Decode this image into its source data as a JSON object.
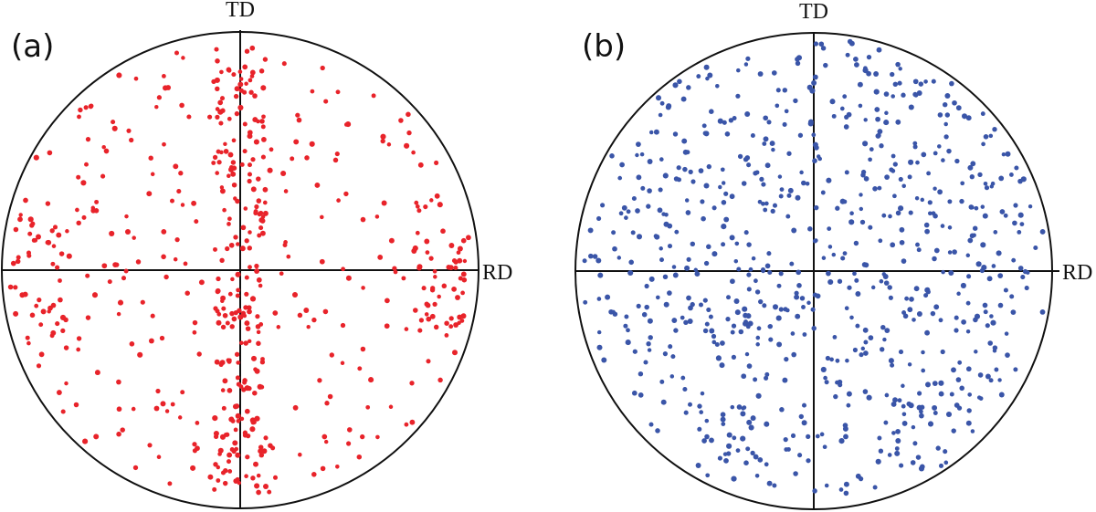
{
  "figure": {
    "panels": [
      {
        "label": "(a)",
        "td_label": "TD",
        "rd_label": "RD",
        "point_color": "#e8232a",
        "point_count": 560,
        "seed": 7,
        "distribution": "clustered"
      },
      {
        "label": "(b)",
        "td_label": "TD",
        "rd_label": "RD",
        "point_color": "#3a55a8",
        "point_count": 740,
        "seed": 19,
        "distribution": "uniform"
      }
    ]
  },
  "chart_data": [
    {
      "type": "scatter",
      "title": "(a)",
      "xlabel": "RD",
      "ylabel": "TD",
      "xlim": [
        -1,
        1
      ],
      "ylim": [
        -1,
        1
      ],
      "grid": false,
      "series": [
        {
          "color": "#e8232a",
          "points": "approx. 560 points, concentrated along TD axis and RD edges"
        }
      ]
    },
    {
      "type": "scatter",
      "title": "(b)",
      "xlabel": "RD",
      "ylabel": "TD",
      "xlim": [
        -1,
        1
      ],
      "ylim": [
        -1,
        1
      ],
      "grid": false,
      "series": [
        {
          "color": "#3a55a8",
          "points": "approx. 740 points, roughly uniform over the circle"
        }
      ]
    }
  ]
}
